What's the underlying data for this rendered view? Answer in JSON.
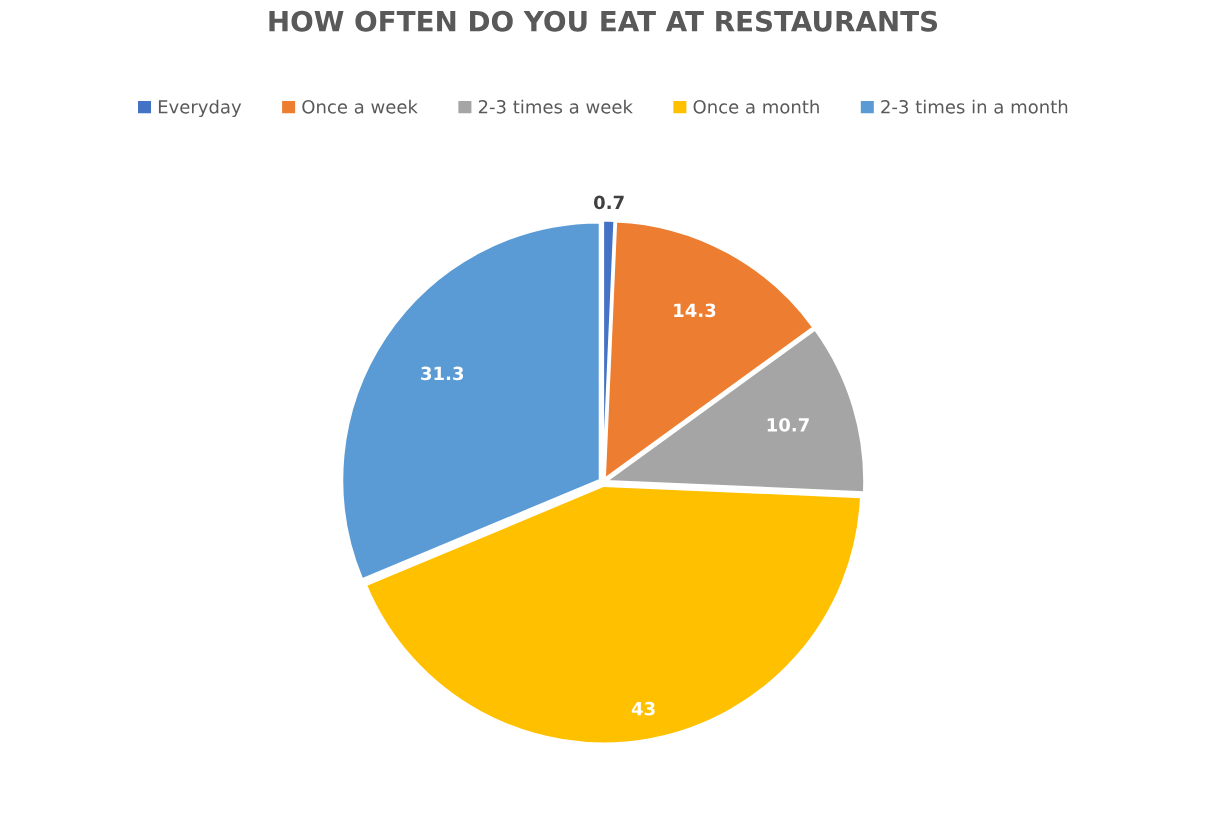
{
  "chart_data": {
    "type": "pie",
    "title": "HOW OFTEN DO YOU EAT AT RESTAURANTS",
    "categories": [
      "Everyday",
      "Once a week",
      "2-3 times a week",
      "Once a month",
      "2-3 times in a month"
    ],
    "values": [
      0.7,
      14.3,
      10.7,
      43,
      31.3
    ],
    "colors": [
      "#4472c4",
      "#ed7d31",
      "#a5a5a5",
      "#ffc000",
      "#5b9bd5"
    ],
    "data_labels": true,
    "legend": "top"
  }
}
